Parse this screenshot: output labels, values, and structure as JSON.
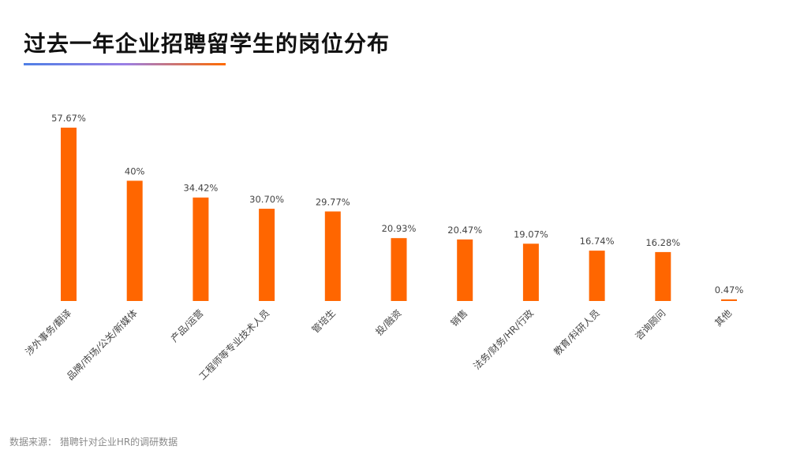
{
  "title": "过去一年企业招聘留学生的岗位分布",
  "source": "数据来源：  猎聘针对企业HR的调研数据",
  "colors": {
    "bar": "#ff6600",
    "accent_gradient": [
      "#4f7fe6",
      "#ff6a00"
    ]
  },
  "chart_data": {
    "type": "bar",
    "categories": [
      "涉外事务/翻译",
      "品牌/市场/公关/新媒体",
      "产品/运营",
      "工程师等专业技术人员",
      "管培生",
      "投/融资",
      "销售",
      "法务/财务/HR/行政",
      "教育/科研人员",
      "咨询顾问",
      "其他"
    ],
    "values": [
      57.67,
      40,
      34.42,
      30.7,
      29.77,
      20.93,
      20.47,
      19.07,
      16.74,
      16.28,
      0.47
    ],
    "value_labels": [
      "57.67%",
      "40%",
      "34.42%",
      "30.70%",
      "29.77%",
      "20.93%",
      "20.47%",
      "19.07%",
      "16.74%",
      "16.28%",
      "0.47%"
    ],
    "ylim": [
      0,
      57.67
    ],
    "grid": false,
    "legend": "none"
  }
}
